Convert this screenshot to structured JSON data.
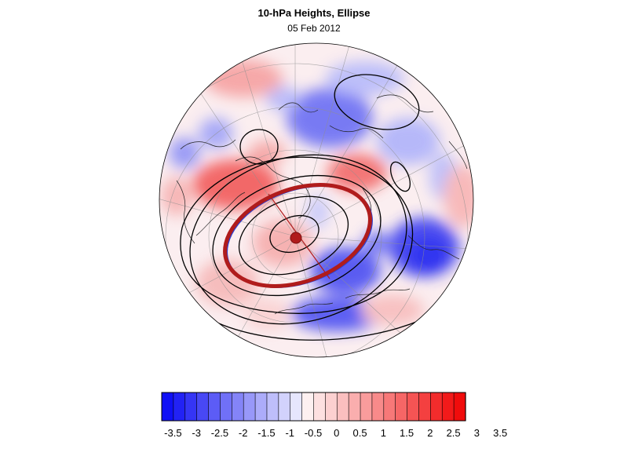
{
  "header": {
    "title": "10-hPa Heights, Ellipse",
    "date": "05 Feb 2012"
  },
  "colorbar": {
    "labels": [
      "-3.5",
      "-3",
      "-2.5",
      "-2",
      "-1.5",
      "-1",
      "-0.5",
      "0",
      "0.5",
      "1",
      "1.5",
      "2",
      "2.5",
      "3",
      "3.5"
    ],
    "colors": [
      "#1010f5",
      "#2222f5",
      "#3535f5",
      "#4848f5",
      "#5c5cf6",
      "#7070f7",
      "#8484f8",
      "#9898f9",
      "#acacfa",
      "#bebefb",
      "#d2d2fc",
      "#e6e6fd",
      "#fdf0f0",
      "#fde0e0",
      "#fcd0d0",
      "#fbbfbf",
      "#faaeae",
      "#f99c9c",
      "#f88a8a",
      "#f77878",
      "#f66666",
      "#f55454",
      "#f44040",
      "#f32c2c",
      "#f21a1a",
      "#f00c0c"
    ]
  },
  "map": {
    "projection": "north polar stereographic",
    "ellipse_color": "#b01c1c",
    "ellipse_inner_color": "#2b3fd1",
    "contour_color": "#000000"
  }
}
